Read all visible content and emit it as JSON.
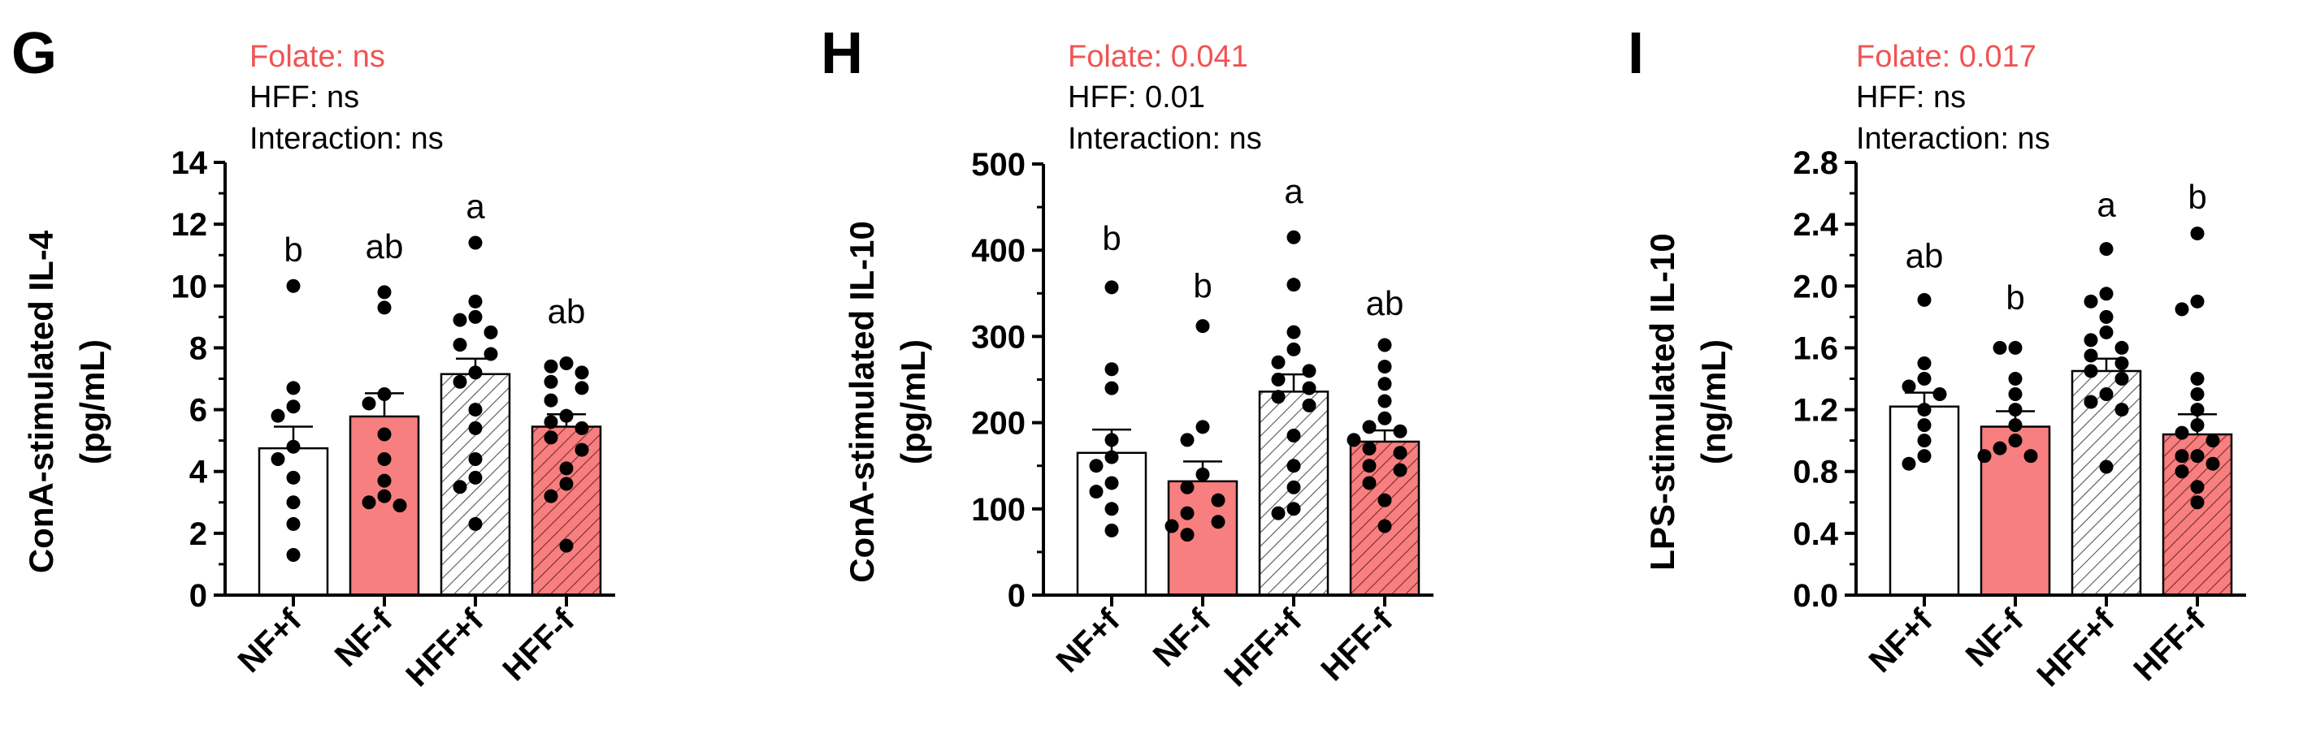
{
  "colors": {
    "red_fill": "#F77F7F",
    "stats_red": "#F05454",
    "black": "#000000",
    "white": "#FFFFFF",
    "hatch": "#555555"
  },
  "chart_data": [
    {
      "type": "bar",
      "panel_label": "G",
      "ylabel": [
        "ConA-stimulated IL-4",
        "(pg/mL)"
      ],
      "categories": [
        "NF+f",
        "NF-f",
        "HFF+f",
        "HFF-f"
      ],
      "bar_styles": [
        "white",
        "red",
        "white-hatch",
        "red-hatch"
      ],
      "values": [
        4.75,
        5.78,
        7.15,
        5.45
      ],
      "sem": [
        0.7,
        0.75,
        0.5,
        0.4
      ],
      "letters": [
        "b",
        "ab",
        "a",
        "ab"
      ],
      "letter_y": [
        10.8,
        10.9,
        12.2,
        8.8
      ],
      "ylim": [
        0,
        14
      ],
      "yticks": [
        0,
        2,
        4,
        6,
        8,
        10,
        12,
        14
      ],
      "yticklabels": [
        "0",
        "2",
        "4",
        "6",
        "8",
        "10",
        "12",
        "14"
      ],
      "stats": [
        {
          "label": "Folate: ns",
          "highlight": true
        },
        {
          "label": "HFF: ns",
          "highlight": false
        },
        {
          "label": "Interaction: ns",
          "highlight": false
        }
      ],
      "points": [
        [
          10.0,
          6.7,
          6.1,
          5.8,
          4.8,
          4.4,
          3.8,
          3.0,
          2.3,
          1.3
        ],
        [
          9.8,
          9.3,
          6.5,
          6.2,
          5.2,
          4.4,
          3.7,
          3.2,
          3.0,
          2.9
        ],
        [
          11.4,
          9.5,
          9.0,
          8.9,
          8.5,
          8.1,
          7.8,
          7.2,
          6.9,
          6.0,
          5.4,
          4.4,
          3.8,
          3.5,
          2.3
        ],
        [
          7.5,
          7.4,
          7.2,
          6.9,
          6.7,
          6.3,
          5.8,
          5.6,
          5.4,
          5.1,
          4.7,
          4.1,
          3.6,
          3.2,
          1.6
        ]
      ]
    },
    {
      "type": "bar",
      "panel_label": "H",
      "ylabel": [
        "ConA-stimulated IL-10",
        "(pg/mL)"
      ],
      "categories": [
        "NF+f",
        "NF-f",
        "HFF+f",
        "HFF-f"
      ],
      "bar_styles": [
        "white",
        "red",
        "white-hatch",
        "red-hatch"
      ],
      "values": [
        165,
        132,
        236,
        178
      ],
      "sem": [
        27,
        23,
        20,
        13
      ],
      "letters": [
        "b",
        "b",
        "a",
        "ab"
      ],
      "letter_y": [
        400,
        345,
        455,
        325
      ],
      "ylim": [
        0,
        500
      ],
      "yticks": [
        0,
        100,
        200,
        300,
        400,
        500
      ],
      "yticklabels": [
        "0",
        "100",
        "200",
        "300",
        "400",
        "500"
      ],
      "stats": [
        {
          "label": "Folate: 0.041",
          "highlight": true
        },
        {
          "label": "HFF: 0.01",
          "highlight": false
        },
        {
          "label": "Interaction: ns",
          "highlight": false
        }
      ],
      "points": [
        [
          357,
          262,
          240,
          180,
          160,
          150,
          130,
          120,
          100,
          75
        ],
        [
          312,
          195,
          180,
          140,
          125,
          110,
          95,
          85,
          80,
          70
        ],
        [
          415,
          360,
          305,
          285,
          270,
          260,
          250,
          240,
          230,
          220,
          185,
          150,
          125,
          100,
          95
        ],
        [
          290,
          265,
          245,
          225,
          205,
          195,
          190,
          180,
          170,
          165,
          150,
          145,
          130,
          110,
          80
        ]
      ]
    },
    {
      "type": "bar",
      "panel_label": "I",
      "ylabel": [
        "LPS-stimulated IL-10",
        "(ng/mL)"
      ],
      "categories": [
        "NF+f",
        "NF-f",
        "HFF+f",
        "HFF-f"
      ],
      "bar_styles": [
        "white",
        "red",
        "white-hatch",
        "red-hatch"
      ],
      "values": [
        1.22,
        1.09,
        1.45,
        1.04
      ],
      "sem": [
        0.09,
        0.1,
        0.08,
        0.13
      ],
      "letters": [
        "ab",
        "b",
        "a",
        "b"
      ],
      "letter_y": [
        2.12,
        1.85,
        2.45,
        2.5
      ],
      "ylim": [
        0,
        2.8
      ],
      "yticks": [
        0,
        0.4,
        0.8,
        1.2,
        1.6,
        2.0,
        2.4,
        2.8
      ],
      "yticklabels": [
        "0.0",
        "0.4",
        "0.8",
        "1.2",
        "1.6",
        "2.0",
        "2.4",
        "2.8"
      ],
      "stats": [
        {
          "label": "Folate: 0.017",
          "highlight": true
        },
        {
          "label": "HFF: ns",
          "highlight": false
        },
        {
          "label": "Interaction: ns",
          "highlight": false
        }
      ],
      "points": [
        [
          1.91,
          1.5,
          1.4,
          1.35,
          1.3,
          1.2,
          1.1,
          1.0,
          0.9,
          0.85
        ],
        [
          1.6,
          1.6,
          1.4,
          1.3,
          1.2,
          1.1,
          1.0,
          0.95,
          0.9,
          0.9
        ],
        [
          2.24,
          1.95,
          1.9,
          1.8,
          1.7,
          1.65,
          1.6,
          1.55,
          1.5,
          1.45,
          1.4,
          1.3,
          1.25,
          1.2,
          0.83
        ],
        [
          2.34,
          1.9,
          1.85,
          1.4,
          1.3,
          1.2,
          1.1,
          1.05,
          1.0,
          0.9,
          0.9,
          0.85,
          0.8,
          0.7,
          0.6
        ]
      ]
    }
  ]
}
